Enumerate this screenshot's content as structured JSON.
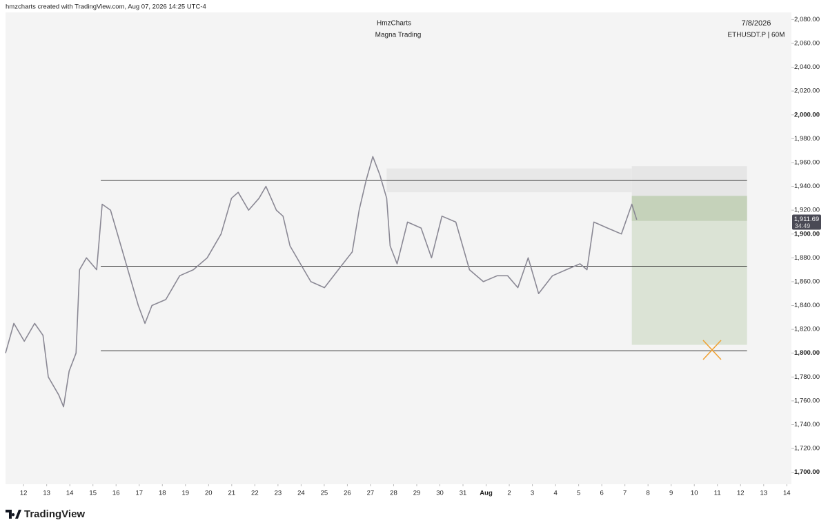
{
  "header": {
    "credit": "hmzcharts created with TradingView.com, Aug 07, 2026 14:25 UTC-4"
  },
  "chart_data": {
    "type": "line",
    "title": "HmzCharts",
    "subtitle": "Magna Trading",
    "date": "7/8/2026",
    "symbol": "ETHUSDT.P | 60M",
    "x": [
      -0.78,
      -0.42,
      0.03,
      0.48,
      0.84,
      1.07,
      1.52,
      1.73,
      1.97,
      2.27,
      2.42,
      2.72,
      3.16,
      3.4,
      3.76,
      4.21,
      4.51,
      4.96,
      5.25,
      5.55,
      6.15,
      6.75,
      7.34,
      7.94,
      8.54,
      8.99,
      9.28,
      9.73,
      10.18,
      10.48,
      10.93,
      11.22,
      11.52,
      11.97,
      12.42,
      13.01,
      13.61,
      14.21,
      14.51,
      14.81,
      15.1,
      15.4,
      15.7,
      15.85,
      16.15,
      16.6,
      17.19,
      17.64,
      18.09,
      18.69,
      19.28,
      19.88,
      20.48,
      20.93,
      21.37,
      21.82,
      22.27,
      22.87,
      23.46,
      24.06,
      24.36,
      24.66,
      25.25,
      25.85,
      26.3,
      26.51
    ],
    "series": [
      {
        "color": "#8a8894",
        "values": [
          1800,
          1825,
          1810,
          1825,
          1815,
          1780,
          1765,
          1755,
          1785,
          1800,
          1870,
          1880,
          1870,
          1925,
          1920,
          1890,
          1870,
          1840,
          1825,
          1840,
          1845,
          1865,
          1870,
          1880,
          1900,
          1930,
          1935,
          1920,
          1930,
          1940,
          1920,
          1915,
          1890,
          1875,
          1860,
          1855,
          1870,
          1885,
          1920,
          1945,
          1965,
          1950,
          1930,
          1890,
          1875,
          1910,
          1905,
          1880,
          1915,
          1910,
          1870,
          1860,
          1865,
          1865,
          1855,
          1880,
          1850,
          1865,
          1870,
          1875,
          1870,
          1910,
          1905,
          1900,
          1925,
          1912
        ]
      }
    ],
    "xlim": [
      -0.78,
      33.2
    ],
    "ylim": [
      1690,
      2086
    ],
    "xticks": [
      {
        "value": 0,
        "label": "12"
      },
      {
        "value": 1,
        "label": "13"
      },
      {
        "value": 2,
        "label": "14"
      },
      {
        "value": 3,
        "label": "15"
      },
      {
        "value": 4,
        "label": "16"
      },
      {
        "value": 5,
        "label": "17"
      },
      {
        "value": 6,
        "label": "18"
      },
      {
        "value": 7,
        "label": "19"
      },
      {
        "value": 8,
        "label": "20"
      },
      {
        "value": 9,
        "label": "21"
      },
      {
        "value": 10,
        "label": "22"
      },
      {
        "value": 11,
        "label": "23"
      },
      {
        "value": 12,
        "label": "24"
      },
      {
        "value": 13,
        "label": "25"
      },
      {
        "value": 14,
        "label": "26"
      },
      {
        "value": 15,
        "label": "27"
      },
      {
        "value": 16,
        "label": "28"
      },
      {
        "value": 17,
        "label": "29"
      },
      {
        "value": 18,
        "label": "30"
      },
      {
        "value": 19,
        "label": "31"
      },
      {
        "value": 20,
        "label": "Aug"
      },
      {
        "value": 21,
        "label": "2"
      },
      {
        "value": 22,
        "label": "3"
      },
      {
        "value": 23,
        "label": "4"
      },
      {
        "value": 24,
        "label": "5"
      },
      {
        "value": 25,
        "label": "6"
      },
      {
        "value": 26,
        "label": "7"
      },
      {
        "value": 27,
        "label": "8"
      },
      {
        "value": 28,
        "label": "9"
      },
      {
        "value": 29,
        "label": "10"
      },
      {
        "value": 30,
        "label": "11"
      },
      {
        "value": 31,
        "label": "12"
      },
      {
        "value": 32,
        "label": "13"
      },
      {
        "value": 33,
        "label": "14"
      }
    ],
    "yticks": [
      {
        "value": 1700,
        "label": "1,700.00"
      },
      {
        "value": 1720,
        "label": "1,720.00"
      },
      {
        "value": 1740,
        "label": "1,740.00"
      },
      {
        "value": 1760,
        "label": "1,760.00"
      },
      {
        "value": 1780,
        "label": "1,780.00"
      },
      {
        "value": 1800,
        "label": "1,800.00"
      },
      {
        "value": 1820,
        "label": "1,820.00"
      },
      {
        "value": 1840,
        "label": "1,840.00"
      },
      {
        "value": 1860,
        "label": "1,860.00"
      },
      {
        "value": 1880,
        "label": "1,880.00"
      },
      {
        "value": 1900,
        "label": "1,900.00"
      },
      {
        "value": 1920,
        "label": "1,920.00"
      },
      {
        "value": 1940,
        "label": "1,940.00"
      },
      {
        "value": 1960,
        "label": "1,960.00"
      },
      {
        "value": 1980,
        "label": "1,980.00"
      },
      {
        "value": 2000,
        "label": "2,000.00"
      },
      {
        "value": 2020,
        "label": "2,020.00"
      },
      {
        "value": 2040,
        "label": "2,040.00"
      },
      {
        "value": 2060,
        "label": "2,060.00"
      },
      {
        "value": 2080,
        "label": "2,080.00"
      }
    ],
    "zones": [
      {
        "x": [
          15.7,
          26.3
        ],
        "y": [
          1935,
          1955
        ],
        "color": "#e8e8e8"
      },
      {
        "x": [
          26.3,
          31.28
        ],
        "y": [
          1911,
          1957
        ],
        "color": "#e6e6e6"
      },
      {
        "x": [
          26.3,
          31.28
        ],
        "y": [
          1807,
          1932
        ],
        "color": "#dbe3d5"
      },
      {
        "x": [
          26.3,
          31.28
        ],
        "y": [
          1911,
          1932
        ],
        "color": "#c5d2ba"
      }
    ],
    "levels": [
      {
        "x": [
          3.34,
          31.28
        ],
        "price": 1945
      },
      {
        "x": [
          3.34,
          31.28
        ],
        "price": 1873
      },
      {
        "x": [
          3.34,
          31.28
        ],
        "price": 1802
      }
    ],
    "last_price": {
      "value": 1911.69,
      "label": "1,911.69"
    },
    "countdown": "34:49"
  },
  "footer": {
    "brand": "TradingView"
  }
}
